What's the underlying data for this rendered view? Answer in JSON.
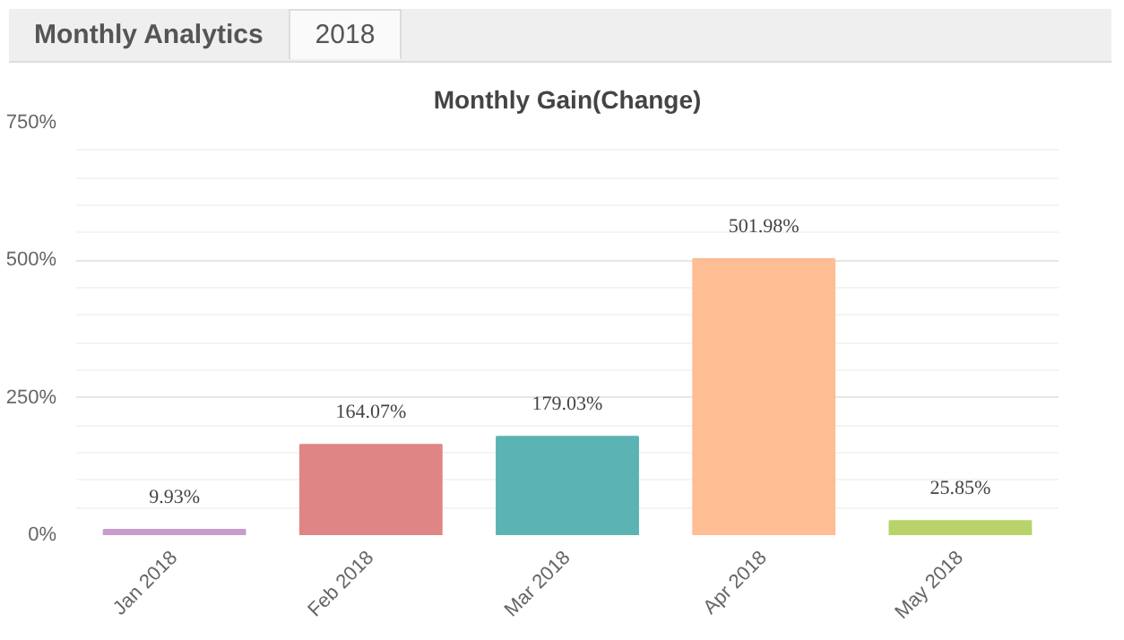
{
  "chart_data": {
    "type": "bar",
    "title": "Monthly Gain(Change)",
    "annotations": [
      "Monthly Analytics",
      "2018"
    ],
    "categories": [
      "Jan 2018",
      "Feb 2018",
      "Mar 2018",
      "Apr 2018",
      "May 2018"
    ],
    "values": [
      9.93,
      164.07,
      179.03,
      501.98,
      25.85
    ],
    "colors": [
      "#c99ccc",
      "#e08585",
      "#5bb3b3",
      "#ffbd94",
      "#b9d36a"
    ],
    "value_labels": [
      "9.93%",
      "164.07%",
      "179.03%",
      "501.98%",
      "25.85%"
    ],
    "ylim": [
      0,
      750
    ],
    "yticks": [
      {
        "value": 0,
        "label": "0%"
      },
      {
        "value": 250,
        "label": "250%"
      },
      {
        "value": 500,
        "label": "500%"
      },
      {
        "value": 750,
        "label": "750%"
      }
    ],
    "grid": "y"
  }
}
